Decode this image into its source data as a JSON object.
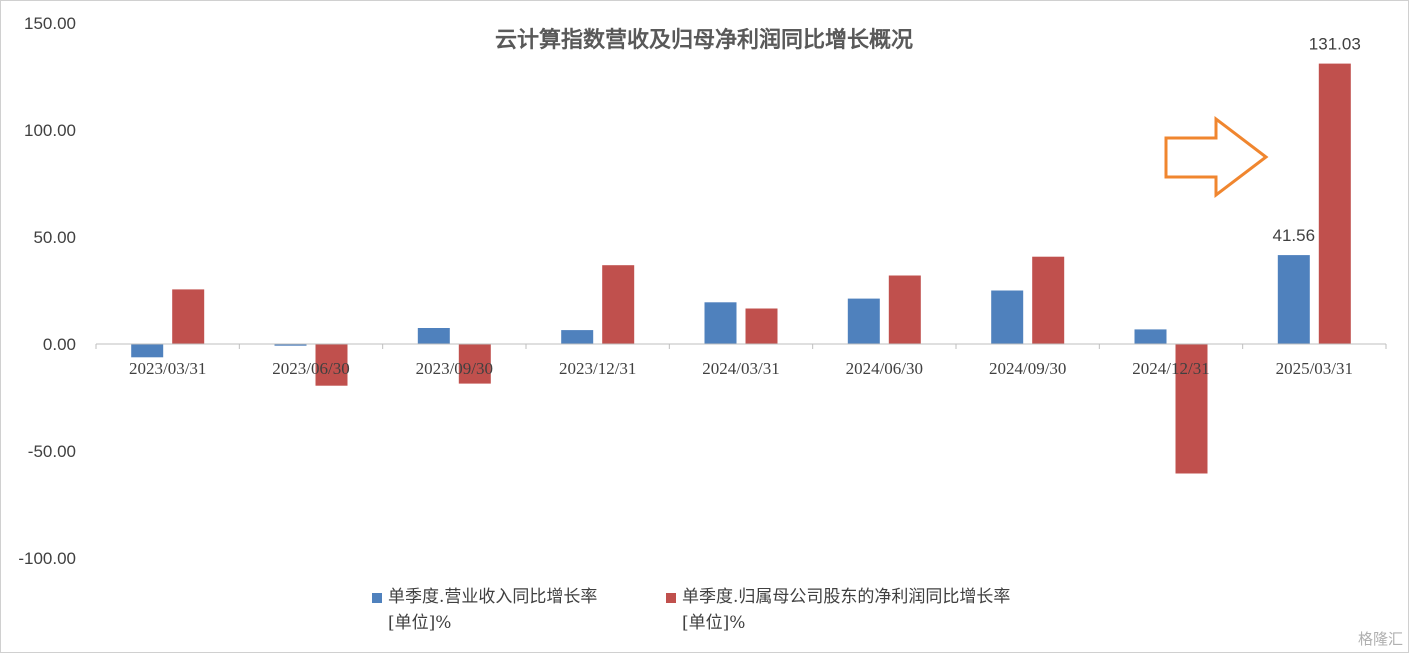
{
  "chart_data": {
    "type": "bar",
    "title": "云计算指数营收及归母净利润同比增长概况",
    "categories": [
      "2023/03/31",
      "2023/06/30",
      "2023/09/30",
      "2023/12/31",
      "2024/03/31",
      "2024/06/30",
      "2024/09/30",
      "2024/12/31",
      "2025/03/31"
    ],
    "series": [
      {
        "name": "单季度.营业收入同比增长率 [单位]%",
        "color": "#4F81BD",
        "values": [
          -6.2,
          -0.8,
          7.5,
          6.5,
          19.5,
          21.2,
          25.0,
          6.8,
          41.56
        ]
      },
      {
        "name": "单季度.归属母公司股东的净利润同比增长率 [单位]%",
        "color": "#C0504D",
        "values": [
          25.5,
          -19.5,
          -18.5,
          36.8,
          16.6,
          32.0,
          40.8,
          -60.5,
          131.03
        ]
      }
    ],
    "data_labels": {
      "41.56": "41.56",
      "131.03": "131.03"
    },
    "yticks": [
      "150.00",
      "100.00",
      "50.00",
      "0.00",
      "-50.00",
      "-100.00"
    ],
    "ylim": [
      -100,
      150
    ],
    "legend_position": "bottom",
    "grid": false
  },
  "legend": {
    "series1_line1": "单季度.营业收入同比增长率",
    "series1_line2": "[单位]%",
    "series2_line1": "单季度.归属母公司股东的净利润同比增长率",
    "series2_line2": "[单位]%"
  },
  "annotation": {
    "arrow_icon": "right-arrow-icon",
    "color": "#F0862F"
  },
  "watermark": "格隆汇"
}
